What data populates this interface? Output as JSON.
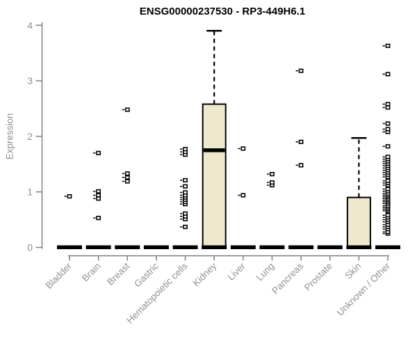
{
  "chart_data": {
    "type": "boxplot",
    "title": "ENSG00000237530 - RP3-449H6.1",
    "ylabel": "Expression",
    "xlabel": "",
    "ylim": [
      0,
      4
    ],
    "yticks": [
      0,
      1,
      2,
      3,
      4
    ],
    "grid": false,
    "legend": false,
    "colors": {
      "box_fill": "#EEE8CD",
      "box_stroke": "#000000",
      "zero_bar": "#000000",
      "outlier_stroke": "#000000",
      "outlier_fill": "#FFFFFF",
      "axis_line": "#808080",
      "tick_label": "#919191",
      "title_color": "#000000"
    },
    "categories": [
      {
        "label": "Bladder",
        "q1": 0,
        "median": 0,
        "q3": 0,
        "whisker_low": 0,
        "whisker_high": 0,
        "outliers": [
          0.92
        ]
      },
      {
        "label": "Brain",
        "q1": 0,
        "median": 0,
        "q3": 0,
        "whisker_low": 0,
        "whisker_high": 0,
        "outliers": [
          0.53,
          0.88,
          0.94,
          1.01,
          1.7
        ]
      },
      {
        "label": "Breast",
        "q1": 0,
        "median": 0,
        "q3": 0,
        "whisker_low": 0,
        "whisker_high": 0,
        "outliers": [
          1.19,
          1.26,
          1.33,
          2.48
        ]
      },
      {
        "label": "Gastric",
        "q1": 0,
        "median": 0,
        "q3": 0,
        "whisker_low": 0,
        "whisker_high": 0,
        "outliers": []
      },
      {
        "label": "Hematopoietic cells",
        "q1": 0,
        "median": 0,
        "q3": 0,
        "whisker_low": 0,
        "whisker_high": 0,
        "outliers": [
          0.37,
          0.51,
          0.56,
          0.61,
          0.78,
          0.82,
          0.86,
          0.9,
          0.94,
          0.99,
          1.1,
          1.21,
          1.67,
          1.72,
          1.77
        ]
      },
      {
        "label": "Kidney",
        "q1": 0,
        "median": 1.75,
        "q3": 2.58,
        "whisker_low": 0,
        "whisker_high": 3.9,
        "outliers": []
      },
      {
        "label": "Liver",
        "q1": 0,
        "median": 0,
        "q3": 0,
        "whisker_low": 0,
        "whisker_high": 0,
        "outliers": [
          0.94,
          1.78
        ]
      },
      {
        "label": "Lung",
        "q1": 0,
        "median": 0,
        "q3": 0,
        "whisker_low": 0,
        "whisker_high": 0,
        "outliers": [
          1.12,
          1.17,
          1.32
        ]
      },
      {
        "label": "Pancreas",
        "q1": 0,
        "median": 0,
        "q3": 0,
        "whisker_low": 0,
        "whisker_high": 0,
        "outliers": [
          1.48,
          1.9,
          3.18
        ]
      },
      {
        "label": "Prostate",
        "q1": 0,
        "median": 0,
        "q3": 0,
        "whisker_low": 0,
        "whisker_high": 0,
        "outliers": []
      },
      {
        "label": "Skin",
        "q1": 0,
        "median": 0,
        "q3": 0.9,
        "whisker_low": 0,
        "whisker_high": 1.97,
        "outliers": []
      },
      {
        "label": "Unknown / Other",
        "q1": 0,
        "median": 0,
        "q3": 0,
        "whisker_low": 0,
        "whisker_high": 0,
        "outliers": [
          0.25,
          0.28,
          0.33,
          0.37,
          0.41,
          0.46,
          0.5,
          0.54,
          0.58,
          0.66,
          0.69,
          0.72,
          0.75,
          0.79,
          0.82,
          0.85,
          0.88,
          0.91,
          0.94,
          0.97,
          1.01,
          1.05,
          1.12,
          1.16,
          1.2,
          1.27,
          1.31,
          1.35,
          1.39,
          1.43,
          1.47,
          1.51,
          1.55,
          1.59,
          1.63,
          1.82,
          2.08,
          2.13,
          2.23,
          2.52,
          2.58,
          3.12,
          3.63
        ]
      }
    ]
  }
}
